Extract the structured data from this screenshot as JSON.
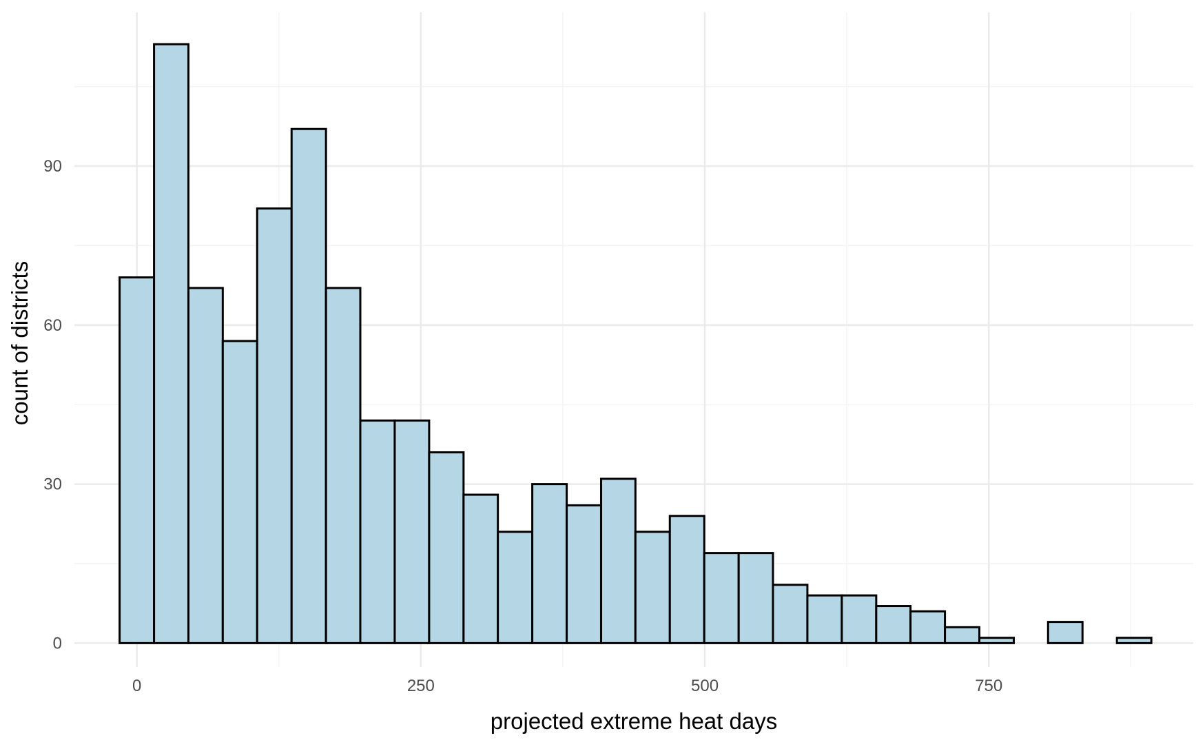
{
  "chart_data": {
    "type": "bar",
    "title": "",
    "xlabel": "projected extreme heat days",
    "ylabel": "count of districts",
    "xlim": [
      -55,
      930
    ],
    "ylim": [
      -4.5,
      119
    ],
    "x_ticks": [
      0,
      250,
      500,
      750
    ],
    "x_tick_labels": [
      "0",
      "250",
      "500",
      "750"
    ],
    "y_ticks": [
      0,
      30,
      60,
      90
    ],
    "y_tick_labels": [
      "0",
      "30",
      "60",
      "90"
    ],
    "x_minor_ticks": [
      125,
      375,
      625,
      875
    ],
    "y_minor_ticks": [
      15,
      45,
      75,
      105
    ],
    "grid": true,
    "bar_fill": "#b5d6e5",
    "bar_stroke": "#000000",
    "bins": [
      {
        "start": -15.2,
        "end": 15.1,
        "count": 69
      },
      {
        "start": 15.1,
        "end": 45.4,
        "count": 113
      },
      {
        "start": 45.4,
        "end": 75.6,
        "count": 67
      },
      {
        "start": 75.6,
        "end": 105.9,
        "count": 57
      },
      {
        "start": 105.9,
        "end": 136.2,
        "count": 82
      },
      {
        "start": 136.2,
        "end": 166.5,
        "count": 97
      },
      {
        "start": 166.5,
        "end": 196.7,
        "count": 67
      },
      {
        "start": 196.7,
        "end": 227.0,
        "count": 42
      },
      {
        "start": 227.0,
        "end": 257.3,
        "count": 42
      },
      {
        "start": 257.3,
        "end": 287.6,
        "count": 36
      },
      {
        "start": 287.6,
        "end": 317.8,
        "count": 28
      },
      {
        "start": 317.8,
        "end": 348.1,
        "count": 21
      },
      {
        "start": 348.1,
        "end": 378.4,
        "count": 30
      },
      {
        "start": 378.4,
        "end": 408.7,
        "count": 26
      },
      {
        "start": 408.7,
        "end": 438.9,
        "count": 31
      },
      {
        "start": 438.9,
        "end": 469.2,
        "count": 21
      },
      {
        "start": 469.2,
        "end": 499.5,
        "count": 24
      },
      {
        "start": 499.5,
        "end": 529.8,
        "count": 17
      },
      {
        "start": 529.8,
        "end": 560.0,
        "count": 17
      },
      {
        "start": 560.0,
        "end": 590.3,
        "count": 11
      },
      {
        "start": 590.3,
        "end": 620.6,
        "count": 9
      },
      {
        "start": 620.6,
        "end": 650.9,
        "count": 9
      },
      {
        "start": 650.9,
        "end": 681.1,
        "count": 7
      },
      {
        "start": 681.1,
        "end": 711.4,
        "count": 6
      },
      {
        "start": 711.4,
        "end": 741.7,
        "count": 3
      },
      {
        "start": 741.7,
        "end": 772.0,
        "count": 1
      },
      {
        "start": 772.0,
        "end": 802.2,
        "count": 0
      },
      {
        "start": 802.2,
        "end": 832.5,
        "count": 4
      },
      {
        "start": 832.5,
        "end": 862.8,
        "count": 0
      },
      {
        "start": 862.8,
        "end": 893.1,
        "count": 1
      }
    ]
  }
}
